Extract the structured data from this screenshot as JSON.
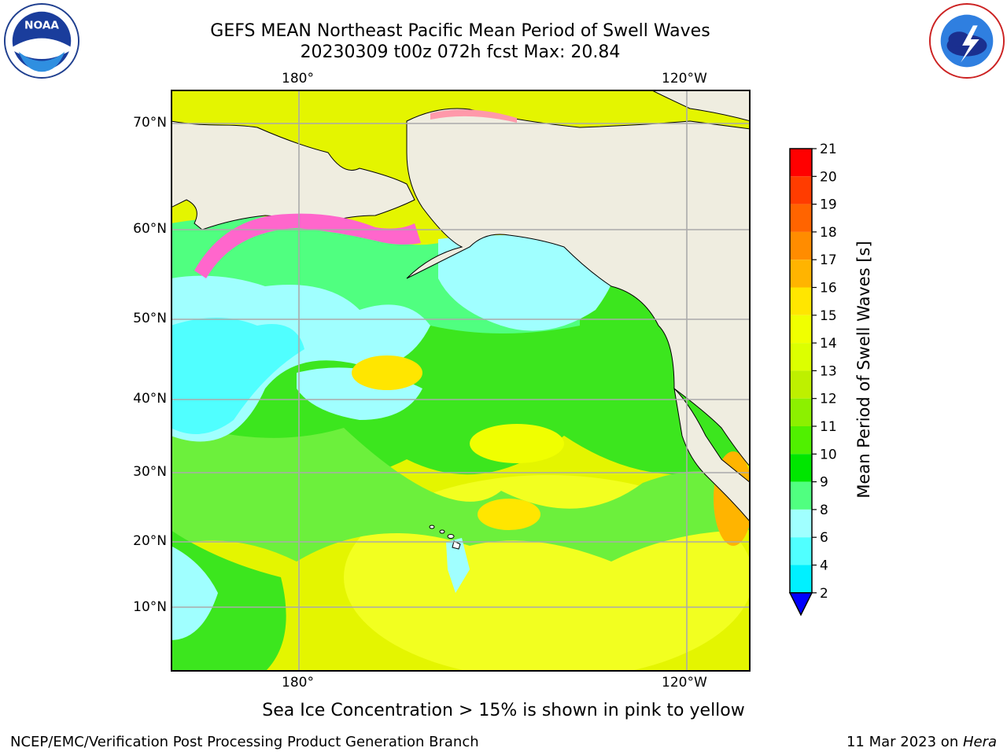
{
  "title": {
    "line1": "GEFS MEAN Northeast Pacific Mean Period of Swell Waves",
    "line2": "20230309 t00z 072h fcst   Max: 20.84"
  },
  "logos": {
    "left": {
      "text": "NOAA",
      "icon": "noaa-logo-icon"
    },
    "right": {
      "icon": "nws-logo-icon"
    }
  },
  "axes": {
    "lon_top": [
      "180°",
      "120°W"
    ],
    "lon_bottom": [
      "180°",
      "120°W"
    ],
    "lat": [
      "70°N",
      "60°N",
      "50°N",
      "40°N",
      "30°N",
      "20°N",
      "10°N"
    ]
  },
  "colorbar": {
    "label": "Mean Period of Swell Waves [s]",
    "ticks": [
      "21",
      "20",
      "19",
      "18",
      "17",
      "16",
      "15",
      "14",
      "13",
      "12",
      "11",
      "10",
      "9",
      "8",
      "6",
      "4",
      "2"
    ],
    "colors": [
      "#ff0000",
      "#ff3c00",
      "#ff6400",
      "#ff8c00",
      "#ffb400",
      "#ffe600",
      "#f0ff00",
      "#dcff00",
      "#bef000",
      "#8cf000",
      "#50f000",
      "#00e600",
      "#50ff80",
      "#a0ffff",
      "#50ffff",
      "#00f0ff",
      "#0096ff",
      "#0000ff"
    ]
  },
  "note": "Sea Ice Concentration > 15% is shown in pink to yellow",
  "footer": {
    "left": "NCEP/EMC/Verification Post Processing Product Generation Branch",
    "right_date": "11 Mar 2023 on ",
    "right_host": "Hera"
  }
}
